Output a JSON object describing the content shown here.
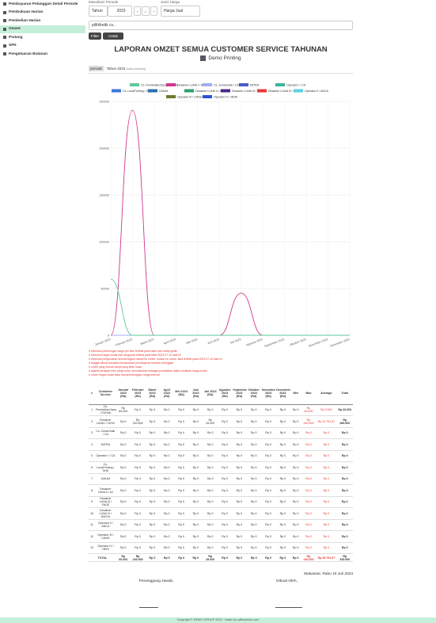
{
  "sidebar": {
    "items": [
      "Pembayaran Pelanggan Detail Periode",
      "Pembukuan Harian",
      "Pembelian Harian",
      "Omzet",
      "Piutang",
      "SPK",
      "Pengeluaran Bulanan"
    ],
    "active": 3
  },
  "filter": {
    "period_label": "Masukkan Periode",
    "period_type": "Tahun",
    "year": "2023",
    "price_label": "Jenis Harga",
    "price_type": "Harga Jual",
    "cs_placeholder": "pilih/ketik cs..",
    "filter_button": "Filter",
    "print_button": "Cetak"
  },
  "report": {
    "title": "LAPORAN OMZET SEMUA CUSTOMER SERVICE TAHUNAN",
    "company": "Demo Printing",
    "period_key": "periode",
    "period_value": "Tahun 2023",
    "period_note": "waktu sekarang"
  },
  "chart_data": {
    "type": "line",
    "categories": [
      "Januari 2023",
      "Februari 2023",
      "Maret 2023",
      "April 2023",
      "Mei 2023",
      "Juni 2023",
      "Juli 2023",
      "Agustus 2023",
      "September 2023",
      "Oktober 2023",
      "November 2023",
      "Desember 2023"
    ],
    "ylim": [
      0,
      250000
    ],
    "yticks": [
      0,
      50000,
      100000,
      150000,
      200000,
      250000
    ],
    "grid": true,
    "series": [
      {
        "name": "Cs. Pembelian/Jasa (FATMA)",
        "color": "#5cc99a",
        "values": [
          60000,
          0,
          0,
          0,
          0,
          0,
          0,
          0,
          0,
          0,
          0,
          0
        ]
      },
      {
        "name": "Desainer LUNA I / NOVI",
        "color": "#d0388c",
        "values": [
          0,
          240500,
          0,
          0,
          0,
          0,
          45000,
          0,
          0,
          0,
          0,
          0
        ]
      },
      {
        "name": "Cs. ZonaCetak / CA",
        "color": "#a3aef0",
        "values": [
          0,
          0,
          0,
          0,
          0,
          0,
          0,
          0,
          0,
          0,
          0,
          0
        ]
      },
      {
        "name": "MITRA",
        "color": "#4a5cc8",
        "values": [
          0,
          0,
          0,
          0,
          0,
          0,
          0,
          0,
          0,
          0,
          0,
          0
        ]
      },
      {
        "name": "Operator I / CA",
        "color": "#3cb39a",
        "values": [
          0,
          0,
          0,
          0,
          0,
          0,
          0,
          0,
          0,
          0,
          0,
          0
        ]
      },
      {
        "name": "Cs. LunaPrinting / SHA",
        "color": "#3a78d8",
        "values": [
          0,
          0,
          0,
          0,
          0,
          0,
          0,
          0,
          0,
          0,
          0,
          0
        ]
      },
      {
        "name": "UMUM",
        "color": "#2f6fb0",
        "values": [
          0,
          0,
          0,
          0,
          0,
          0,
          0,
          0,
          0,
          0,
          0,
          0
        ]
      },
      {
        "name": "Desainer LUNA II / AJ",
        "color": "#2e9e6e",
        "values": [
          0,
          0,
          0,
          0,
          0,
          0,
          0,
          0,
          0,
          0,
          0,
          0
        ]
      },
      {
        "name": "Desainer LUNA III / FAGE",
        "color": "#4b2a8a",
        "values": [
          0,
          0,
          0,
          0,
          0,
          0,
          0,
          0,
          0,
          0,
          0,
          0
        ]
      },
      {
        "name": "Desainer LUNA IV / WIDYA",
        "color": "#e53935",
        "values": [
          0,
          0,
          0,
          0,
          0,
          0,
          0,
          0,
          0,
          0,
          0,
          0
        ]
      },
      {
        "name": "Operator II / ANCA",
        "color": "#5ad0e0",
        "values": [
          0,
          0,
          0,
          0,
          0,
          0,
          0,
          0,
          0,
          0,
          0,
          0
        ]
      },
      {
        "name": "Operator III / CANG",
        "color": "#6b7a2a",
        "values": [
          0,
          0,
          0,
          0,
          0,
          0,
          0,
          0,
          0,
          0,
          0,
          0
        ]
      },
      {
        "name": "Operator IV / HERI",
        "color": "#2f4fd8",
        "values": [
          0,
          0,
          0,
          0,
          0,
          0,
          0,
          0,
          0,
          0,
          0,
          0
        ]
      }
    ]
  },
  "notes": [
    "# informasi perhitungan harga per item terlihat pada tabel dan tooltip grafik",
    "# informasi harga modal dan harga jual terlihat pada tabel 2023-07-19 saat ini",
    "# informasi pengeluaran semua bagian masuk ke omzet, masuk ke modal, laba terlihat pada 2023-07-19 saat ini",
    "# tanggal dibuat transaksi berdasarkan pembayaran terakhir pelanggan",
    "# omzet yang masuk hanya yang telah lunas",
    "# apabila terdapat retur yang lunas, memasukkan sebagai pembatalan dalam tindakan harga modal",
    "# omzet harga modal tidak memperhitungkan harga internal"
  ],
  "table": {
    "headers": [
      "#",
      "Customer Service",
      "Januari 2023 (Rd)",
      "Februari 2023 (Rd)",
      "Maret 2023 (Rd)",
      "April 2023 (Rd)",
      "Mei 2023 (Rd)",
      "Juni 2023 (Rd)",
      "Juli 2023 (Rd)",
      "Agustus 2023 (Rd)",
      "September 2023 (Rd)",
      "Oktober 2023 (Rd)",
      "November 2023 (Rd)",
      "Desember 2023 (Rd)",
      "Min",
      "Max",
      "Average",
      "Total"
    ],
    "rows": [
      [
        "1",
        "Cs. Pembelian/Jasa / FATMA",
        "Rp 60.000",
        "Rp 0",
        "Rp 0",
        "Rp 0",
        "Rp 0",
        "Rp 0",
        "Rp 0",
        "Rp 0",
        "Rp 0",
        "Rp 0",
        "Rp 0",
        "Rp 0",
        "Rp 0",
        "Rp 60.000",
        "Rp 5.000",
        "Rp 60.000"
      ],
      [
        "2",
        "Desainer LUNA I / NOVI",
        "Rp 0",
        "Rp 240.500",
        "Rp 0",
        "Rp 0",
        "Rp 0",
        "Rp 0",
        "Rp 45.000",
        "Rp 0",
        "Rp 0",
        "Rp 0",
        "Rp 0",
        "Rp 0",
        "Rp 0",
        "Rp 240.500",
        "Rp 23.791,67",
        "Rp 285.500"
      ],
      [
        "3",
        "Cs. ZonaCetak / CA",
        "Rp 0",
        "Rp 0",
        "Rp 0",
        "Rp 0",
        "Rp 0",
        "Rp 0",
        "Rp 0",
        "Rp 0",
        "Rp 0",
        "Rp 0",
        "Rp 0",
        "Rp 0",
        "Rp 0",
        "Rp 0",
        "Rp 0",
        "Rp 0"
      ],
      [
        "4",
        "MITRA",
        "Rp 0",
        "Rp 0",
        "Rp 0",
        "Rp 0",
        "Rp 0",
        "Rp 0",
        "Rp 0",
        "Rp 0",
        "Rp 0",
        "Rp 0",
        "Rp 0",
        "Rp 0",
        "Rp 0",
        "Rp 0",
        "Rp 0",
        "Rp 0"
      ],
      [
        "5",
        "Operator I / CA",
        "Rp 0",
        "Rp 0",
        "Rp 0",
        "Rp 0",
        "Rp 0",
        "Rp 0",
        "Rp 0",
        "Rp 0",
        "Rp 0",
        "Rp 0",
        "Rp 0",
        "Rp 0",
        "Rp 0",
        "Rp 0",
        "Rp 0",
        "Rp 0"
      ],
      [
        "6",
        "Cs. LunaPrinting / SHA",
        "Rp 0",
        "Rp 0",
        "Rp 0",
        "Rp 0",
        "Rp 0",
        "Rp 0",
        "Rp 0",
        "Rp 0",
        "Rp 0",
        "Rp 0",
        "Rp 0",
        "Rp 0",
        "Rp 0",
        "Rp 0",
        "Rp 0",
        "Rp 0"
      ],
      [
        "7",
        "UMUM",
        "Rp 0",
        "Rp 0",
        "Rp 0",
        "Rp 0",
        "Rp 0",
        "Rp 0",
        "Rp 0",
        "Rp 0",
        "Rp 0",
        "Rp 0",
        "Rp 0",
        "Rp 0",
        "Rp 0",
        "Rp 0",
        "Rp 0",
        "Rp 0"
      ],
      [
        "8",
        "Desainer LUNA II / AJ",
        "Rp 0",
        "Rp 0",
        "Rp 0",
        "Rp 0",
        "Rp 0",
        "Rp 0",
        "Rp 0",
        "Rp 0",
        "Rp 0",
        "Rp 0",
        "Rp 0",
        "Rp 0",
        "Rp 0",
        "Rp 0",
        "Rp 0",
        "Rp 0"
      ],
      [
        "9",
        "Desainer LUNA III / FAGE",
        "Rp 0",
        "Rp 0",
        "Rp 0",
        "Rp 0",
        "Rp 0",
        "Rp 0",
        "Rp 0",
        "Rp 0",
        "Rp 0",
        "Rp 0",
        "Rp 0",
        "Rp 0",
        "Rp 0",
        "Rp 0",
        "Rp 0",
        "Rp 0"
      ],
      [
        "10",
        "Desainer LUNA IV / WIDYA",
        "Rp 0",
        "Rp 0",
        "Rp 0",
        "Rp 0",
        "Rp 0",
        "Rp 0",
        "Rp 0",
        "Rp 0",
        "Rp 0",
        "Rp 0",
        "Rp 0",
        "Rp 0",
        "Rp 0",
        "Rp 0",
        "Rp 0",
        "Rp 0"
      ],
      [
        "11",
        "Operator II / ANCA",
        "Rp 0",
        "Rp 0",
        "Rp 0",
        "Rp 0",
        "Rp 0",
        "Rp 0",
        "Rp 0",
        "Rp 0",
        "Rp 0",
        "Rp 0",
        "Rp 0",
        "Rp 0",
        "Rp 0",
        "Rp 0",
        "Rp 0",
        "Rp 0"
      ],
      [
        "12",
        "Operator III / CANG",
        "Rp 0",
        "Rp 0",
        "Rp 0",
        "Rp 0",
        "Rp 0",
        "Rp 0",
        "Rp 0",
        "Rp 0",
        "Rp 0",
        "Rp 0",
        "Rp 0",
        "Rp 0",
        "Rp 0",
        "Rp 0",
        "Rp 0",
        "Rp 0"
      ],
      [
        "13",
        "Operator IV / HERI",
        "Rp 0",
        "Rp 0",
        "Rp 0",
        "Rp 0",
        "Rp 0",
        "Rp 0",
        "Rp 0",
        "Rp 0",
        "Rp 0",
        "Rp 0",
        "Rp 0",
        "Rp 0",
        "Rp 0",
        "Rp 0",
        "Rp 0",
        "Rp 0"
      ]
    ],
    "total": [
      "TOTAL",
      "Rp 60.000",
      "Rp 240.500",
      "Rp 0",
      "Rp 0",
      "Rp 0",
      "Rp 0",
      "Rp 45.000",
      "Rp 0",
      "Rp 0",
      "Rp 0",
      "Rp 0",
      "Rp 0",
      "Rp 0",
      "Rp 240.500",
      "Rp 28.791,67",
      "Rp 345.500"
    ]
  },
  "signature": {
    "place_date": "Makassar, Rabu 19 Juli 2023",
    "left": "Penanggung Jawab,",
    "right": "Dibuat Oleh,"
  },
  "footer": "Copyright © DEMO GROUP 2023 · made by npBusiness.com"
}
